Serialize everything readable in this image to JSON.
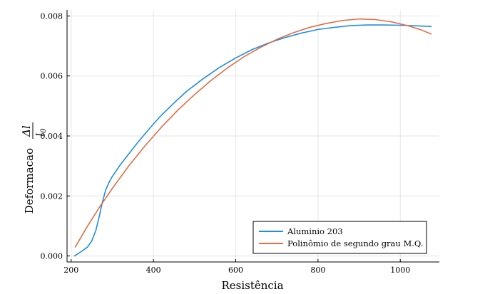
{
  "chart_data": {
    "type": "line",
    "title": "",
    "xlabel": "Resistência",
    "ylabel": "Deformacao",
    "ylabel_math": {
      "numerator": "Δl",
      "denominator": "l",
      "denominator_sub": "0"
    },
    "xlim": [
      190,
      1095
    ],
    "ylim": [
      -0.0002,
      0.0082
    ],
    "x_ticks": [
      200,
      400,
      600,
      800,
      1000
    ],
    "y_ticks": [
      0.0,
      0.002,
      0.004,
      0.006,
      0.008
    ],
    "x_tick_labels": [
      "200",
      "400",
      "600",
      "800",
      "1000"
    ],
    "y_tick_labels": [
      "0.000",
      "0.002",
      "0.004",
      "0.006",
      "0.008"
    ],
    "grid": true,
    "legend_position": "bottom-right",
    "series": [
      {
        "name": "Aluminio 203",
        "color": "#1f8fe0",
        "x": [
          208,
          225,
          240,
          250,
          260,
          268,
          276,
          284,
          292,
          300,
          320,
          340,
          360,
          380,
          400,
          420,
          450,
          480,
          520,
          560,
          600,
          640,
          680,
          720,
          760,
          800,
          840,
          880,
          920,
          960,
          1000,
          1040,
          1075
        ],
        "y": [
          0.0,
          0.00015,
          0.0003,
          0.0005,
          0.00085,
          0.0013,
          0.0018,
          0.0022,
          0.00245,
          0.00265,
          0.00305,
          0.0034,
          0.00375,
          0.00408,
          0.0044,
          0.0047,
          0.0051,
          0.00548,
          0.0059,
          0.00628,
          0.0066,
          0.00688,
          0.0071,
          0.00728,
          0.00743,
          0.00755,
          0.00762,
          0.00768,
          0.0077,
          0.0077,
          0.00769,
          0.00767,
          0.00765
        ]
      },
      {
        "name": "Polinômio de segundo grau M.Q.",
        "color": "#e26e43",
        "x": [
          210,
          240,
          270,
          300,
          340,
          380,
          420,
          460,
          500,
          540,
          580,
          620,
          660,
          700,
          740,
          780,
          820,
          860,
          900,
          940,
          980,
          1020,
          1050,
          1075
        ],
        "y": [
          0.0003,
          0.001,
          0.00165,
          0.00225,
          0.003,
          0.00368,
          0.0043,
          0.00487,
          0.00538,
          0.00585,
          0.00627,
          0.00664,
          0.00695,
          0.00722,
          0.00744,
          0.00762,
          0.00775,
          0.00785,
          0.0079,
          0.00788,
          0.0078,
          0.00767,
          0.00754,
          0.0074
        ]
      }
    ]
  }
}
